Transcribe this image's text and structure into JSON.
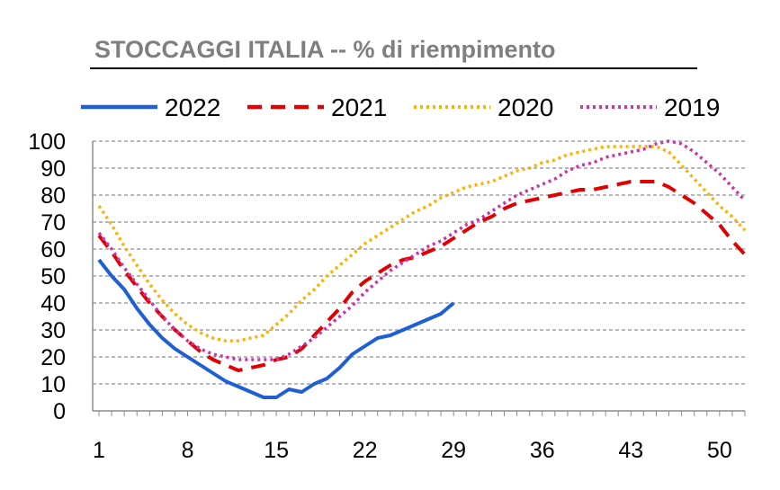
{
  "chart_data": {
    "type": "line",
    "title": "STOCCAGGI ITALIA -- % di riempimento",
    "xlabel": "",
    "ylabel": "",
    "ylim": [
      0,
      100
    ],
    "xlim": [
      1,
      52
    ],
    "grid": true,
    "legend_position": "top",
    "x_ticks": [
      1,
      8,
      15,
      22,
      29,
      36,
      43,
      50
    ],
    "y_ticks": [
      0,
      10,
      20,
      30,
      40,
      50,
      60,
      70,
      80,
      90,
      100
    ],
    "series": [
      {
        "name": "2022",
        "color": "#1f5fd6",
        "style": "solid",
        "x": [
          1,
          2,
          3,
          4,
          5,
          6,
          7,
          8,
          9,
          10,
          11,
          12,
          13,
          14,
          15,
          16,
          17,
          18,
          19,
          20,
          21,
          22,
          23,
          24,
          25,
          26,
          27,
          28,
          29
        ],
        "values": [
          56,
          50,
          45,
          38,
          32,
          27,
          23,
          20,
          17,
          14,
          11,
          9,
          7,
          5,
          5,
          8,
          7,
          10,
          12,
          16,
          21,
          24,
          27,
          28,
          30,
          32,
          34,
          36,
          40
        ]
      },
      {
        "name": "2021",
        "color": "#e00000",
        "style": "dashed",
        "x": [
          1,
          2,
          3,
          4,
          5,
          6,
          7,
          8,
          9,
          10,
          11,
          12,
          13,
          14,
          15,
          16,
          17,
          18,
          19,
          20,
          21,
          22,
          23,
          24,
          25,
          26,
          27,
          28,
          29,
          30,
          31,
          32,
          33,
          34,
          35,
          36,
          37,
          38,
          39,
          40,
          41,
          42,
          43,
          44,
          45,
          46,
          47,
          48,
          49,
          50,
          51,
          52
        ],
        "values": [
          65,
          59,
          52,
          46,
          40,
          35,
          30,
          26,
          22,
          19,
          17,
          15,
          16,
          17,
          19,
          20,
          23,
          28,
          33,
          38,
          44,
          48,
          51,
          54,
          56,
          57,
          59,
          61,
          64,
          67,
          70,
          72,
          75,
          77,
          78,
          79,
          80,
          81,
          82,
          82,
          83,
          84,
          85,
          85,
          85,
          83,
          80,
          77,
          73,
          69,
          63,
          58
        ]
      },
      {
        "name": "2020",
        "color": "#ffb000",
        "style": "dotted",
        "x": [
          1,
          2,
          3,
          4,
          5,
          6,
          7,
          8,
          9,
          10,
          11,
          12,
          13,
          14,
          15,
          16,
          17,
          18,
          19,
          20,
          21,
          22,
          23,
          24,
          25,
          26,
          27,
          28,
          29,
          30,
          31,
          32,
          33,
          34,
          35,
          36,
          37,
          38,
          39,
          40,
          41,
          42,
          43,
          44,
          45,
          46,
          47,
          48,
          49,
          50,
          51,
          52
        ],
        "values": [
          76,
          69,
          61,
          54,
          47,
          41,
          36,
          32,
          29,
          27,
          26,
          26,
          27,
          28,
          32,
          36,
          41,
          45,
          50,
          54,
          58,
          62,
          65,
          68,
          71,
          74,
          76,
          79,
          81,
          83,
          84,
          85,
          87,
          89,
          90,
          92,
          93,
          95,
          96,
          97,
          98,
          98,
          98,
          98,
          98,
          96,
          91,
          86,
          81,
          76,
          72,
          67
        ]
      },
      {
        "name": "2019",
        "color": "#cc33aa",
        "style": "dotted",
        "x": [
          1,
          2,
          3,
          4,
          5,
          6,
          7,
          8,
          9,
          10,
          11,
          12,
          13,
          14,
          15,
          16,
          17,
          18,
          19,
          20,
          21,
          22,
          23,
          24,
          25,
          26,
          27,
          28,
          29,
          30,
          31,
          32,
          33,
          34,
          35,
          36,
          37,
          38,
          39,
          40,
          41,
          42,
          43,
          44,
          45,
          46,
          47,
          48,
          49,
          50,
          51,
          52
        ],
        "values": [
          66,
          60,
          53,
          47,
          41,
          35,
          30,
          26,
          23,
          21,
          20,
          19,
          19,
          19,
          19,
          21,
          24,
          27,
          31,
          35,
          39,
          44,
          48,
          52,
          55,
          58,
          61,
          63,
          66,
          69,
          71,
          74,
          77,
          80,
          82,
          84,
          86,
          89,
          91,
          92,
          94,
          95,
          96,
          97,
          99,
          100,
          99,
          96,
          92,
          88,
          83,
          78
        ]
      }
    ]
  }
}
